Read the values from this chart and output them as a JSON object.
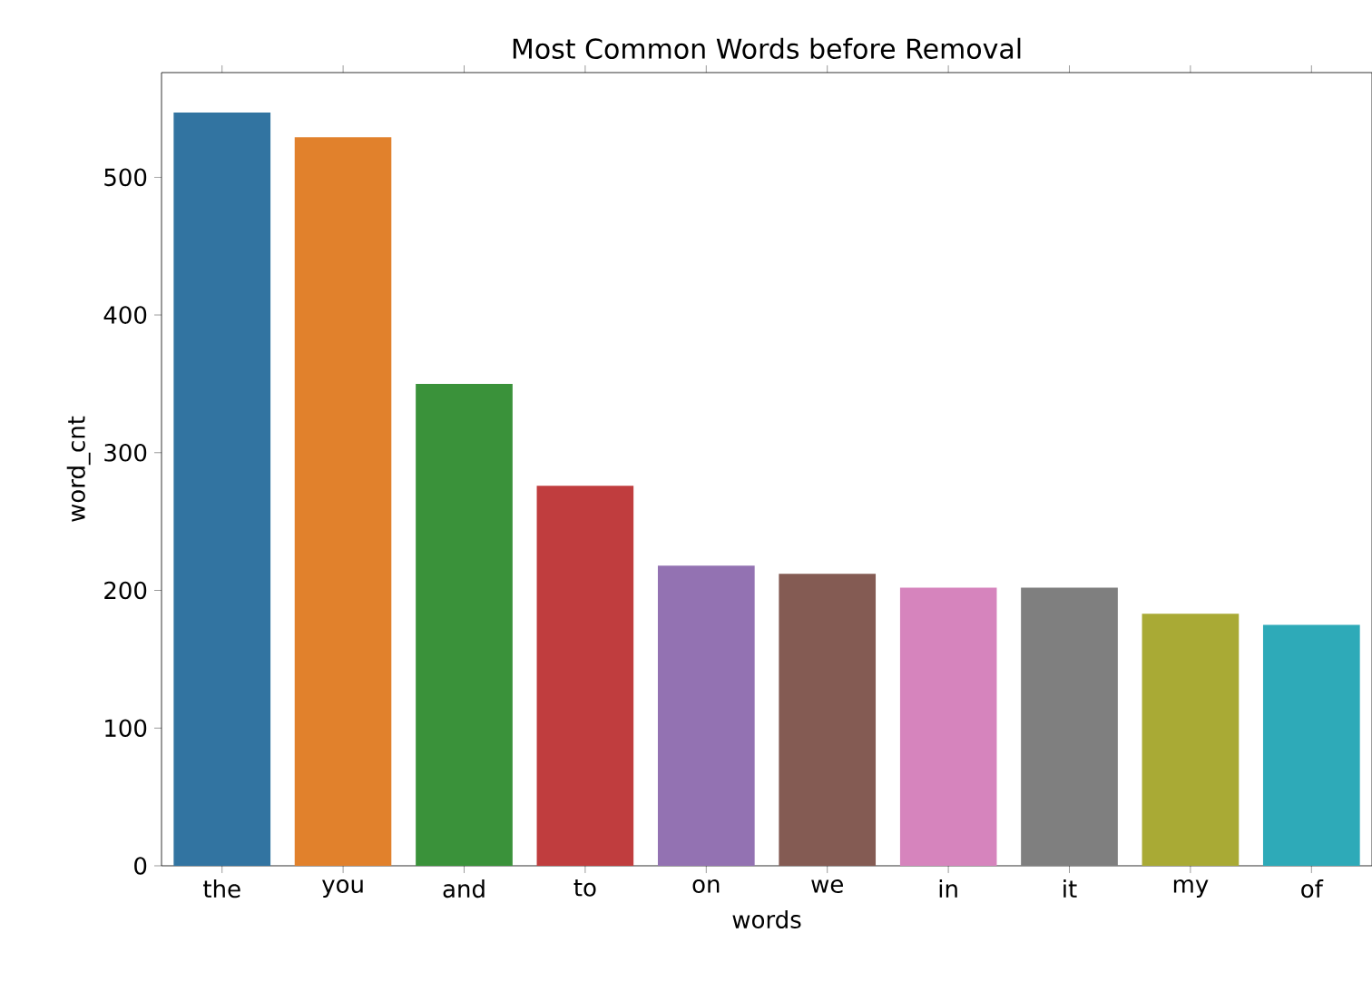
{
  "chart_data": {
    "type": "bar",
    "title": "Most Common Words before Removal",
    "xlabel": "words",
    "ylabel": "word_cnt",
    "categories": [
      "the",
      "you",
      "and",
      "to",
      "on",
      "we",
      "in",
      "it",
      "my",
      "of"
    ],
    "values": [
      547,
      529,
      350,
      276,
      218,
      212,
      202,
      202,
      183,
      175
    ],
    "colors": [
      "#3274a1",
      "#e1812c",
      "#3a923a",
      "#c03d3e",
      "#9372b2",
      "#845b53",
      "#d684bd",
      "#7f7f7f",
      "#a9aa35",
      "#2eaab8"
    ],
    "ylim": [
      0,
      576
    ],
    "yticks": [
      0,
      100,
      200,
      300,
      400,
      500
    ]
  }
}
